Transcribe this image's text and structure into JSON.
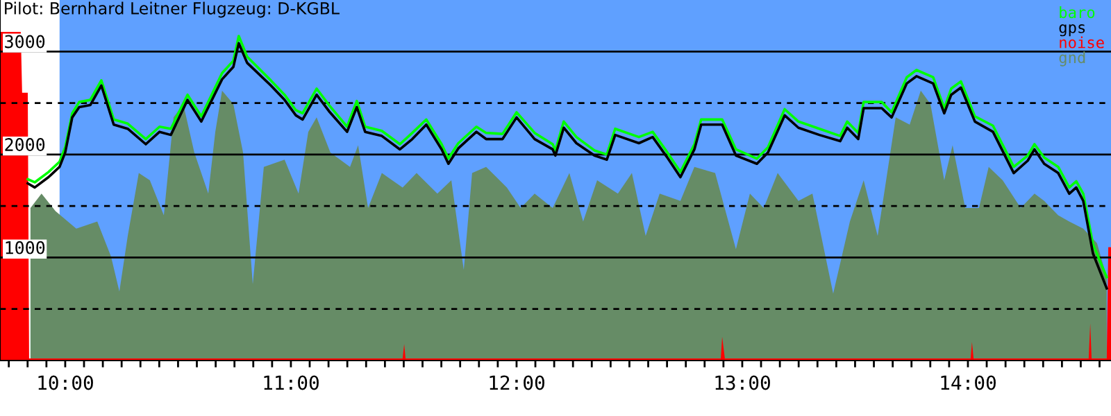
{
  "chart_data": {
    "type": "line",
    "title": "Pilot: Bernhard Leitner Flugzeug: D-KGBL",
    "x": [
      9.834,
      9.865,
      9.926,
      9.975,
      10.0,
      10.031,
      10.062,
      10.111,
      10.16,
      10.215,
      10.277,
      10.357,
      10.418,
      10.468,
      10.542,
      10.603,
      10.695,
      10.745,
      10.769,
      10.806,
      10.911,
      10.972,
      11.022,
      11.052,
      11.114,
      11.169,
      11.249,
      11.292,
      11.329,
      11.403,
      11.483,
      11.538,
      11.6,
      11.668,
      11.698,
      11.742,
      11.822,
      11.865,
      11.938,
      12.0,
      12.08,
      12.16,
      12.172,
      12.209,
      12.265,
      12.345,
      12.4,
      12.437,
      12.542,
      12.603,
      12.665,
      12.726,
      12.788,
      12.818,
      12.911,
      12.972,
      13.065,
      13.114,
      13.188,
      13.249,
      13.342,
      13.434,
      13.465,
      13.514,
      13.538,
      13.618,
      13.662,
      13.729,
      13.772,
      13.846,
      13.895,
      13.926,
      13.969,
      14.031,
      14.111,
      14.203,
      14.265,
      14.295,
      14.338,
      14.4,
      14.449,
      14.48,
      14.511,
      14.554,
      14.615
    ],
    "series": [
      {
        "name": "baro",
        "color": "#00ff00",
        "values": [
          1760,
          1730,
          1830,
          1930,
          2070,
          2400,
          2510,
          2530,
          2720,
          2340,
          2300,
          2150,
          2270,
          2250,
          2580,
          2370,
          2790,
          2910,
          3150,
          2950,
          2720,
          2580,
          2430,
          2400,
          2640,
          2480,
          2270,
          2520,
          2270,
          2230,
          2100,
          2210,
          2340,
          2100,
          1960,
          2110,
          2270,
          2210,
          2200,
          2410,
          2210,
          2100,
          2040,
          2320,
          2170,
          2040,
          2000,
          2250,
          2170,
          2220,
          2030,
          1830,
          2100,
          2340,
          2340,
          2050,
          1960,
          2070,
          2440,
          2320,
          2250,
          2180,
          2320,
          2210,
          2510,
          2510,
          2410,
          2750,
          2820,
          2750,
          2450,
          2640,
          2710,
          2370,
          2280,
          1880,
          1990,
          2100,
          1970,
          1880,
          1680,
          1740,
          1620,
          1130,
          810
        ]
      },
      {
        "name": "gps",
        "color": "#000000",
        "values": [
          1720,
          1680,
          1780,
          1880,
          2020,
          2360,
          2460,
          2480,
          2670,
          2290,
          2250,
          2100,
          2220,
          2190,
          2530,
          2320,
          2730,
          2850,
          3080,
          2890,
          2670,
          2530,
          2380,
          2340,
          2580,
          2420,
          2220,
          2460,
          2220,
          2180,
          2050,
          2150,
          2290,
          2050,
          1910,
          2060,
          2220,
          2150,
          2150,
          2360,
          2150,
          2050,
          1990,
          2260,
          2110,
          1990,
          1950,
          2190,
          2110,
          2170,
          1980,
          1780,
          2050,
          2290,
          2290,
          1990,
          1910,
          2020,
          2380,
          2260,
          2190,
          2130,
          2260,
          2150,
          2450,
          2450,
          2360,
          2690,
          2760,
          2690,
          2400,
          2580,
          2650,
          2320,
          2220,
          1820,
          1940,
          2050,
          1910,
          1820,
          1620,
          1680,
          1550,
          1040,
          700
        ]
      },
      {
        "name": "noise",
        "type": "area",
        "color": "#ff0000",
        "x": [
          9.711,
          9.803,
          9.809,
          9.834,
          9.84,
          11.495,
          11.502,
          11.508,
          12.905,
          12.911,
          12.923,
          14.012,
          14.018,
          14.025,
          14.535,
          14.542,
          14.548,
          14.615,
          14.622,
          14.634
        ],
        "values": [
          3190,
          3190,
          2600,
          2600,
          20,
          20,
          160,
          20,
          20,
          230,
          20,
          20,
          180,
          20,
          20,
          360,
          20,
          20,
          1100,
          1100
        ]
      },
      {
        "name": "gnd",
        "type": "area",
        "color": "#668c66",
        "x": [
          9.846,
          9.895,
          9.957,
          10.049,
          10.142,
          10.203,
          10.24,
          10.277,
          10.326,
          10.375,
          10.437,
          10.48,
          10.523,
          10.572,
          10.634,
          10.665,
          10.695,
          10.745,
          10.788,
          10.831,
          10.88,
          10.972,
          11.034,
          11.077,
          11.114,
          11.175,
          11.262,
          11.298,
          11.342,
          11.403,
          11.495,
          11.557,
          11.649,
          11.711,
          11.766,
          11.803,
          11.865,
          11.957,
          12.018,
          12.08,
          12.16,
          12.234,
          12.295,
          12.357,
          12.449,
          12.511,
          12.572,
          12.634,
          12.726,
          12.788,
          12.88,
          12.972,
          13.034,
          13.095,
          13.157,
          13.249,
          13.311,
          13.403,
          13.477,
          13.538,
          13.6,
          13.68,
          13.742,
          13.791,
          13.834,
          13.895,
          13.932,
          13.988,
          14.049,
          14.092,
          14.154,
          14.234,
          14.295,
          14.338,
          14.4,
          14.449,
          14.511,
          14.572,
          14.615
        ],
        "values": [
          1480,
          1620,
          1450,
          1280,
          1350,
          1010,
          670,
          1210,
          1820,
          1750,
          1410,
          2360,
          2490,
          2020,
          1620,
          2220,
          2620,
          2490,
          2020,
          740,
          1880,
          1950,
          1620,
          2220,
          2360,
          2020,
          1880,
          2090,
          1480,
          1820,
          1680,
          1820,
          1620,
          1750,
          880,
          1820,
          1880,
          1680,
          1480,
          1620,
          1480,
          1820,
          1350,
          1750,
          1620,
          1820,
          1210,
          1620,
          1550,
          1880,
          1820,
          1080,
          1620,
          1480,
          1820,
          1550,
          1620,
          650,
          1350,
          1750,
          1210,
          2360,
          2290,
          2620,
          2490,
          1750,
          2090,
          1480,
          1480,
          1880,
          1750,
          1480,
          1620,
          1550,
          1410,
          1350,
          1280,
          1140,
          810
        ]
      }
    ],
    "xlim": [
      9.711,
      14.634
    ],
    "ylim": [
      0,
      3500
    ],
    "yticks": [
      {
        "value": 500,
        "label": null
      },
      1000,
      {
        "value": 1500,
        "label": null
      },
      2000,
      {
        "value": 2500,
        "label": null
      },
      3000
    ],
    "xticks": [
      {
        "value": 9.75,
        "label": null
      },
      {
        "value": 9.8333,
        "label": null
      },
      {
        "value": 9.9167,
        "label": null
      },
      {
        "value": 10,
        "label": "10:00"
      },
      {
        "value": 10.0833,
        "label": null
      },
      {
        "value": 10.1667,
        "label": null
      },
      {
        "value": 10.25,
        "label": null
      },
      {
        "value": 10.3333,
        "label": null
      },
      {
        "value": 10.4167,
        "label": null
      },
      {
        "value": 10.5,
        "label": null
      },
      {
        "value": 10.5833,
        "label": null
      },
      {
        "value": 10.6667,
        "label": null
      },
      {
        "value": 10.75,
        "label": null
      },
      {
        "value": 10.8333,
        "label": null
      },
      {
        "value": 10.9167,
        "label": null
      },
      {
        "value": 11,
        "label": "11:00"
      },
      {
        "value": 11.0833,
        "label": null
      },
      {
        "value": 11.1667,
        "label": null
      },
      {
        "value": 11.25,
        "label": null
      },
      {
        "value": 11.3333,
        "label": null
      },
      {
        "value": 11.4167,
        "label": null
      },
      {
        "value": 11.5,
        "label": null
      },
      {
        "value": 11.5833,
        "label": null
      },
      {
        "value": 11.6667,
        "label": null
      },
      {
        "value": 11.75,
        "label": null
      },
      {
        "value": 11.8333,
        "label": null
      },
      {
        "value": 11.9167,
        "label": null
      },
      {
        "value": 12,
        "label": "12:00"
      },
      {
        "value": 12.0833,
        "label": null
      },
      {
        "value": 12.1667,
        "label": null
      },
      {
        "value": 12.25,
        "label": null
      },
      {
        "value": 12.3333,
        "label": null
      },
      {
        "value": 12.4167,
        "label": null
      },
      {
        "value": 12.5,
        "label": null
      },
      {
        "value": 12.5833,
        "label": null
      },
      {
        "value": 12.6667,
        "label": null
      },
      {
        "value": 12.75,
        "label": null
      },
      {
        "value": 12.8333,
        "label": null
      },
      {
        "value": 12.9167,
        "label": null
      },
      {
        "value": 13,
        "label": "13:00"
      },
      {
        "value": 13.0833,
        "label": null
      },
      {
        "value": 13.1667,
        "label": null
      },
      {
        "value": 13.25,
        "label": null
      },
      {
        "value": 13.3333,
        "label": null
      },
      {
        "value": 13.4167,
        "label": null
      },
      {
        "value": 13.5,
        "label": null
      },
      {
        "value": 13.5833,
        "label": null
      },
      {
        "value": 13.6667,
        "label": null
      },
      {
        "value": 13.75,
        "label": null
      },
      {
        "value": 13.8333,
        "label": null
      },
      {
        "value": 13.9167,
        "label": null
      },
      {
        "value": 14,
        "label": "14:00"
      },
      {
        "value": 14.0833,
        "label": null
      },
      {
        "value": 14.1667,
        "label": null
      },
      {
        "value": 14.25,
        "label": null
      },
      {
        "value": 14.3333,
        "label": null
      },
      {
        "value": 14.4167,
        "label": null
      },
      {
        "value": 14.5,
        "label": null
      },
      {
        "value": 14.5833,
        "label": null
      }
    ],
    "bands": [
      {
        "axis": "x",
        "from": 9.711,
        "to": 9.975,
        "color": "#ffffff"
      }
    ],
    "grid": "y",
    "legend": "top right",
    "marker": "none",
    "line_style": "solid"
  }
}
